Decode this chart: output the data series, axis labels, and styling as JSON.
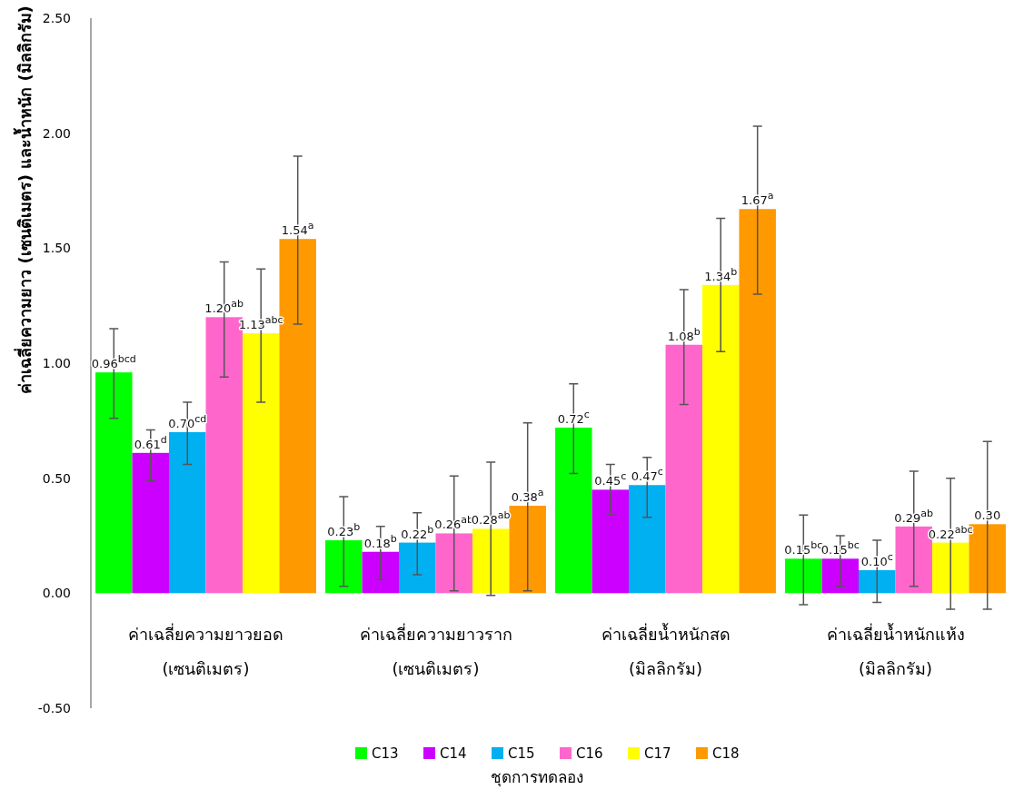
{
  "chart_data": {
    "type": "bar",
    "ylabel": "ค่าเฉลี่ยความยาว (เซนติเมตร) และน้ำหนัก (มิลลิกรัม)",
    "xlabel": "ชุดการทดลอง",
    "categories": [
      "ค่าเฉลี่ยความยาวยอด\n(เซนติเมตร)",
      "ค่าเฉลี่ยความยาวราก\n(เซนติเมตร)",
      "ค่าเฉลี่ยน้ำหนักสด\n(มิลลิกรัม)",
      "ค่าเฉลี่ยน้ำหนักแห้ง\n(มิลลิกรัม)"
    ],
    "ylim": [
      -0.5,
      2.5
    ],
    "yticks": [
      {
        "value": -0.5,
        "label": "-0.50"
      },
      {
        "value": 0,
        "label": "0.00"
      },
      {
        "value": 0.5,
        "label": "0.50"
      },
      {
        "value": 1,
        "label": "1.00"
      },
      {
        "value": 1.5,
        "label": "1.50"
      },
      {
        "value": 2,
        "label": "2.00"
      },
      {
        "value": 2.5,
        "label": "2.50"
      }
    ],
    "grid": false,
    "legend": "bottom",
    "series": [
      {
        "name": "C13",
        "color": "#00ff00",
        "values": [
          0.96,
          0.23,
          0.72,
          0.15
        ],
        "value_labels": [
          "0.96$^{bcd}$",
          "0.23$^{b}$",
          "0.72$^{c}$",
          "0.15$^{bc}$"
        ],
        "errors": [
          [
            0.76,
            1.15
          ],
          [
            0.03,
            0.42
          ],
          [
            0.52,
            0.91
          ],
          [
            -0.05,
            0.34
          ]
        ]
      },
      {
        "name": "C14",
        "color": "#cc00ff",
        "values": [
          0.61,
          0.18,
          0.45,
          0.15
        ],
        "value_labels": [
          "0.61$^{d}$",
          "0.18$^{b}$",
          "0.45$^{c}$",
          "0.15$^{bc}$"
        ],
        "errors": [
          [
            0.49,
            0.71
          ],
          [
            0.06,
            0.29
          ],
          [
            0.34,
            0.56
          ],
          [
            0.03,
            0.25
          ]
        ]
      },
      {
        "name": "C15",
        "color": "#00b0f0",
        "values": [
          0.7,
          0.22,
          0.47,
          0.1
        ],
        "value_labels": [
          "0.70$^{cd}$",
          "0.22$^{b}$",
          "0.47$^{c}$",
          "0.10$^{c}$"
        ],
        "errors": [
          [
            0.56,
            0.83
          ],
          [
            0.08,
            0.35
          ],
          [
            0.33,
            0.59
          ],
          [
            -0.04,
            0.23
          ]
        ]
      },
      {
        "name": "C16",
        "color": "#ff66cc",
        "values": [
          1.2,
          0.26,
          1.08,
          0.29
        ],
        "value_labels": [
          "1.20$^{ab}$",
          "0.26$^{ab}$",
          "1.08$^{b}$",
          "0.29$^{ab}$"
        ],
        "errors": [
          [
            0.94,
            1.44
          ],
          [
            0.01,
            0.51
          ],
          [
            0.82,
            1.32
          ],
          [
            0.03,
            0.53
          ]
        ]
      },
      {
        "name": "C17",
        "color": "#ffff00",
        "values": [
          1.13,
          0.28,
          1.34,
          0.22
        ],
        "value_labels": [
          "1.13$^{abc}$",
          "0.28$^{ab}$",
          "1.34$^{b}$",
          "0.22$^{abc}$"
        ],
        "errors": [
          [
            0.83,
            1.41
          ],
          [
            -0.01,
            0.57
          ],
          [
            1.05,
            1.63
          ],
          [
            -0.07,
            0.5
          ]
        ]
      },
      {
        "name": "C18",
        "color": "#ff9900",
        "values": [
          1.54,
          0.38,
          1.67,
          0.3
        ],
        "value_labels": [
          "1.54$^{a}$",
          "0.38$^{a}$",
          "1.67$^{a}$",
          "0.30"
        ],
        "errors": [
          [
            1.17,
            1.9
          ],
          [
            0.01,
            0.74
          ],
          [
            1.3,
            2.03
          ],
          [
            -0.07,
            0.66
          ]
        ]
      }
    ]
  }
}
